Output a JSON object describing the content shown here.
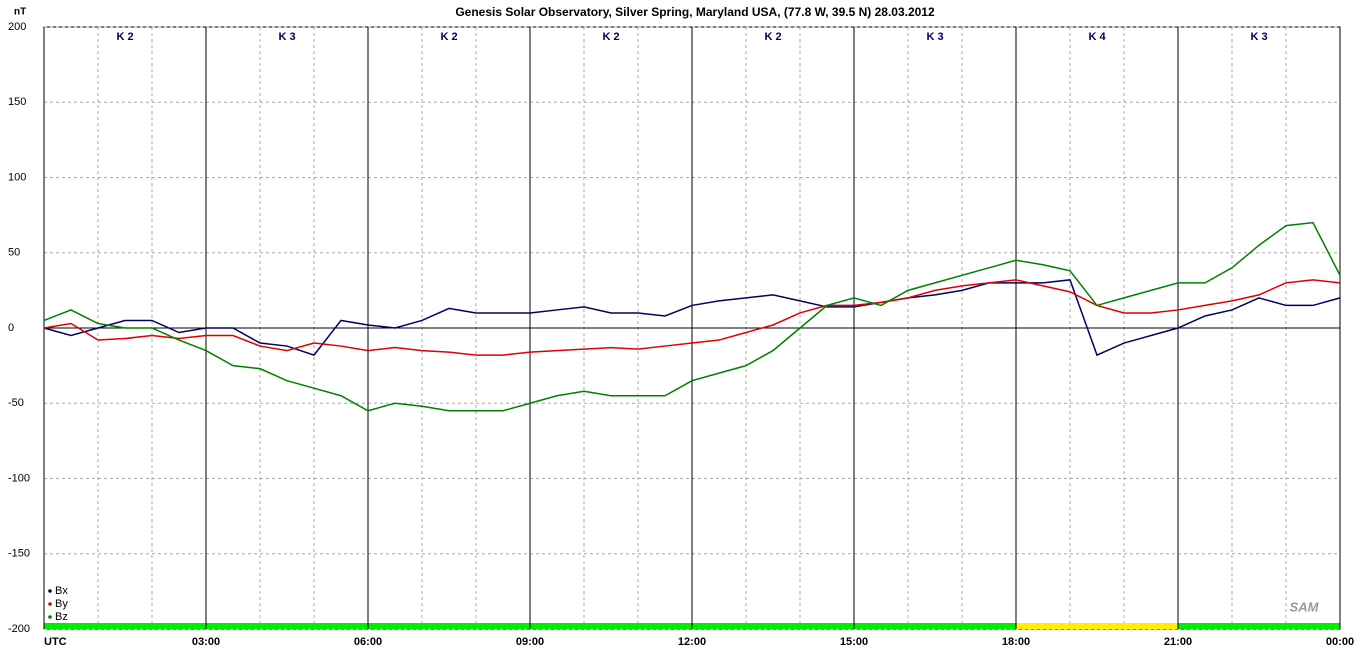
{
  "chart_data": {
    "type": "line",
    "title": "Genesis Solar Observatory, Silver Spring, Maryland USA, (77.8 W, 39.5 N)  28.03.2012",
    "y_label": "nT",
    "logo": "SAM",
    "x": [
      0,
      0.5,
      1,
      1.5,
      2,
      2.5,
      3,
      3.5,
      4,
      4.5,
      5,
      5.5,
      6,
      6.5,
      7,
      7.5,
      8,
      8.5,
      9,
      9.5,
      10,
      10.5,
      11,
      11.5,
      12,
      12.5,
      13,
      13.5,
      14,
      14.5,
      15,
      15.5,
      16,
      16.5,
      17,
      17.5,
      18,
      18.5,
      19,
      19.5,
      20,
      20.5,
      21,
      21.5,
      22,
      22.5,
      23,
      23.5,
      24
    ],
    "series": [
      {
        "name": "Bx",
        "color": "#000066",
        "values": [
          0,
          -5,
          0,
          5,
          5,
          -3,
          0,
          0,
          -10,
          -12,
          -18,
          5,
          2,
          0,
          5,
          13,
          10,
          10,
          10,
          12,
          14,
          10,
          10,
          8,
          15,
          18,
          20,
          22,
          18,
          14,
          14,
          17,
          20,
          22,
          25,
          30,
          30,
          30,
          32,
          -18,
          -10,
          -5,
          0,
          8,
          12,
          20,
          15,
          15,
          20
        ]
      },
      {
        "name": "By",
        "color": "#e00000",
        "values": [
          0,
          3,
          -8,
          -7,
          -5,
          -7,
          -5,
          -5,
          -12,
          -15,
          -10,
          -12,
          -15,
          -13,
          -15,
          -16,
          -18,
          -18,
          -16,
          -15,
          -14,
          -13,
          -14,
          -12,
          -10,
          -8,
          -3,
          2,
          10,
          15,
          15,
          17,
          20,
          25,
          28,
          30,
          32,
          28,
          24,
          15,
          10,
          10,
          12,
          15,
          18,
          22,
          30,
          32,
          30
        ]
      },
      {
        "name": "Bz",
        "color": "#008000",
        "values": [
          5,
          12,
          3,
          0,
          0,
          -8,
          -15,
          -25,
          -27,
          -35,
          -40,
          -45,
          -55,
          -50,
          -52,
          -55,
          -55,
          -55,
          -50,
          -45,
          -42,
          -45,
          -45,
          -45,
          -35,
          -30,
          -25,
          -15,
          0,
          15,
          20,
          15,
          25,
          30,
          35,
          40,
          45,
          42,
          38,
          15,
          20,
          25,
          30,
          30,
          40,
          55,
          68,
          70,
          35
        ]
      }
    ],
    "xlim": [
      0,
      24
    ],
    "xticks": [
      {
        "value": 0,
        "label": "UTC"
      },
      {
        "value": 3,
        "label": "03:00"
      },
      {
        "value": 6,
        "label": "06:00"
      },
      {
        "value": 9,
        "label": "09:00"
      },
      {
        "value": 12,
        "label": "12:00"
      },
      {
        "value": 15,
        "label": "15:00"
      },
      {
        "value": 18,
        "label": "18:00"
      },
      {
        "value": 21,
        "label": "21:00"
      },
      {
        "value": 24,
        "label": "00:00"
      }
    ],
    "ylim": [
      -200,
      200
    ],
    "yticks": [
      -200,
      -150,
      -100,
      -50,
      0,
      50,
      100,
      150,
      200
    ],
    "grid": true,
    "legend": "bottom-left",
    "k_index": [
      {
        "label": "K 2",
        "color": "#00ee00"
      },
      {
        "label": "K 3",
        "color": "#00ee00"
      },
      {
        "label": "K 2",
        "color": "#00ee00"
      },
      {
        "label": "K 2",
        "color": "#00ee00"
      },
      {
        "label": "K 2",
        "color": "#00ee00"
      },
      {
        "label": "K 3",
        "color": "#00ee00"
      },
      {
        "label": "K 4",
        "color": "#ffee00"
      },
      {
        "label": "K 3",
        "color": "#00ee00"
      }
    ]
  }
}
